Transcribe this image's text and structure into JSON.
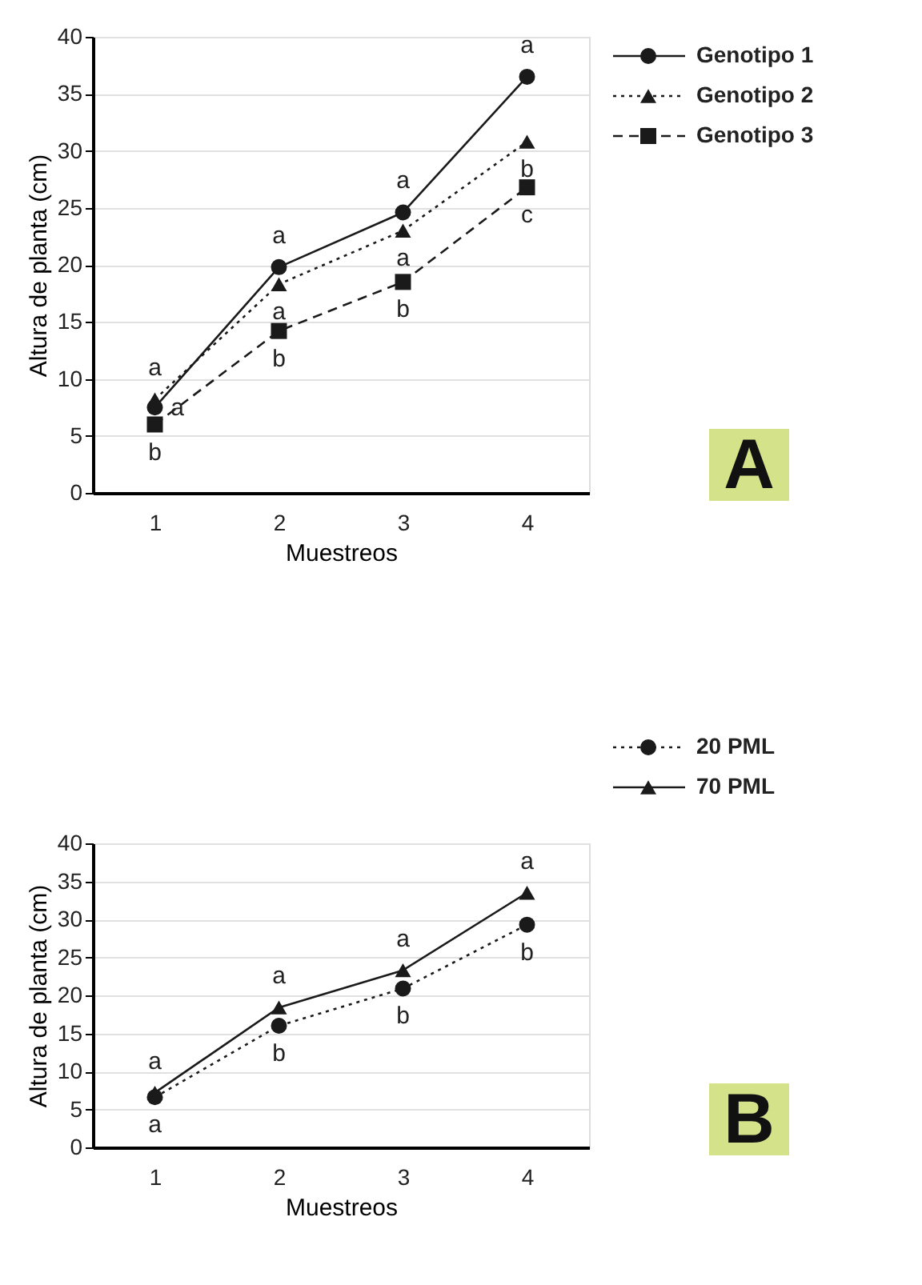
{
  "chart_data": [
    {
      "type": "line",
      "categories": [
        "1",
        "2",
        "3",
        "4"
      ],
      "xlabel": "Muestreos",
      "ylabel": "Altura de planta (cm)",
      "ylim": [
        0,
        40
      ],
      "yticks": [
        0,
        5,
        10,
        15,
        20,
        25,
        30,
        35,
        40
      ],
      "grid": "y",
      "legend": "right",
      "series": [
        {
          "name": "Genotipo 1",
          "color": "#1a1a1a",
          "marker": "circle",
          "line_style": "solid",
          "values": [
            7.5,
            19.8,
            24.6,
            36.5
          ]
        },
        {
          "name": "Genotipo 2",
          "color": "#1a1a1a",
          "marker": "triangle",
          "line_style": "dotted",
          "values": [
            8.2,
            18.3,
            23.0,
            30.8
          ]
        },
        {
          "name": "Genotipo 3",
          "color": "#1a1a1a",
          "marker": "square",
          "line_style": "dashed",
          "values": [
            6.0,
            14.2,
            18.5,
            26.8
          ]
        }
      ],
      "annotations": [
        {
          "text": "a",
          "x": "1",
          "y": 7.5
        },
        {
          "text": "a",
          "x": "1",
          "y": 8.2
        },
        {
          "text": "b",
          "x": "1",
          "y": 6.0
        },
        {
          "text": "a",
          "x": "2",
          "y": 19.8
        },
        {
          "text": "a",
          "x": "2",
          "y": 18.3
        },
        {
          "text": "b",
          "x": "2",
          "y": 14.2
        },
        {
          "text": "a",
          "x": "3",
          "y": 24.6
        },
        {
          "text": "a",
          "x": "3",
          "y": 23.0
        },
        {
          "text": "b",
          "x": "3",
          "y": 18.5
        },
        {
          "text": "a",
          "x": "4",
          "y": 36.5
        },
        {
          "text": "b",
          "x": "4",
          "y": 30.8
        },
        {
          "text": "c",
          "x": "4",
          "y": 26.8
        },
        "A"
      ]
    },
    {
      "type": "line",
      "categories": [
        "1",
        "2",
        "3",
        "4"
      ],
      "xlabel": "Muestreos",
      "ylabel": "Altura de planta (cm)",
      "ylim": [
        0,
        40
      ],
      "yticks": [
        0,
        5,
        10,
        15,
        20,
        25,
        30,
        35,
        40
      ],
      "grid": "y",
      "legend": "top right",
      "series": [
        {
          "name": "20 PML",
          "color": "#1a1a1a",
          "marker": "circle",
          "line_style": "dotted",
          "values": [
            6.6,
            16.0,
            20.9,
            29.3
          ]
        },
        {
          "name": "70 PML",
          "color": "#1a1a1a",
          "marker": "triangle",
          "line_style": "solid",
          "values": [
            7.2,
            18.4,
            23.3,
            33.5
          ]
        }
      ],
      "annotations": [
        {
          "text": "a",
          "x": "1",
          "y": 7.2
        },
        {
          "text": "a",
          "x": "1",
          "y": 6.6
        },
        {
          "text": "a",
          "x": "2",
          "y": 18.4
        },
        {
          "text": "b",
          "x": "2",
          "y": 16.0
        },
        {
          "text": "a",
          "x": "3",
          "y": 23.3
        },
        {
          "text": "b",
          "x": "3",
          "y": 20.9
        },
        {
          "text": "a",
          "x": "4",
          "y": 33.5
        },
        {
          "text": "b",
          "x": "4",
          "y": 29.3
        },
        "B"
      ]
    }
  ]
}
